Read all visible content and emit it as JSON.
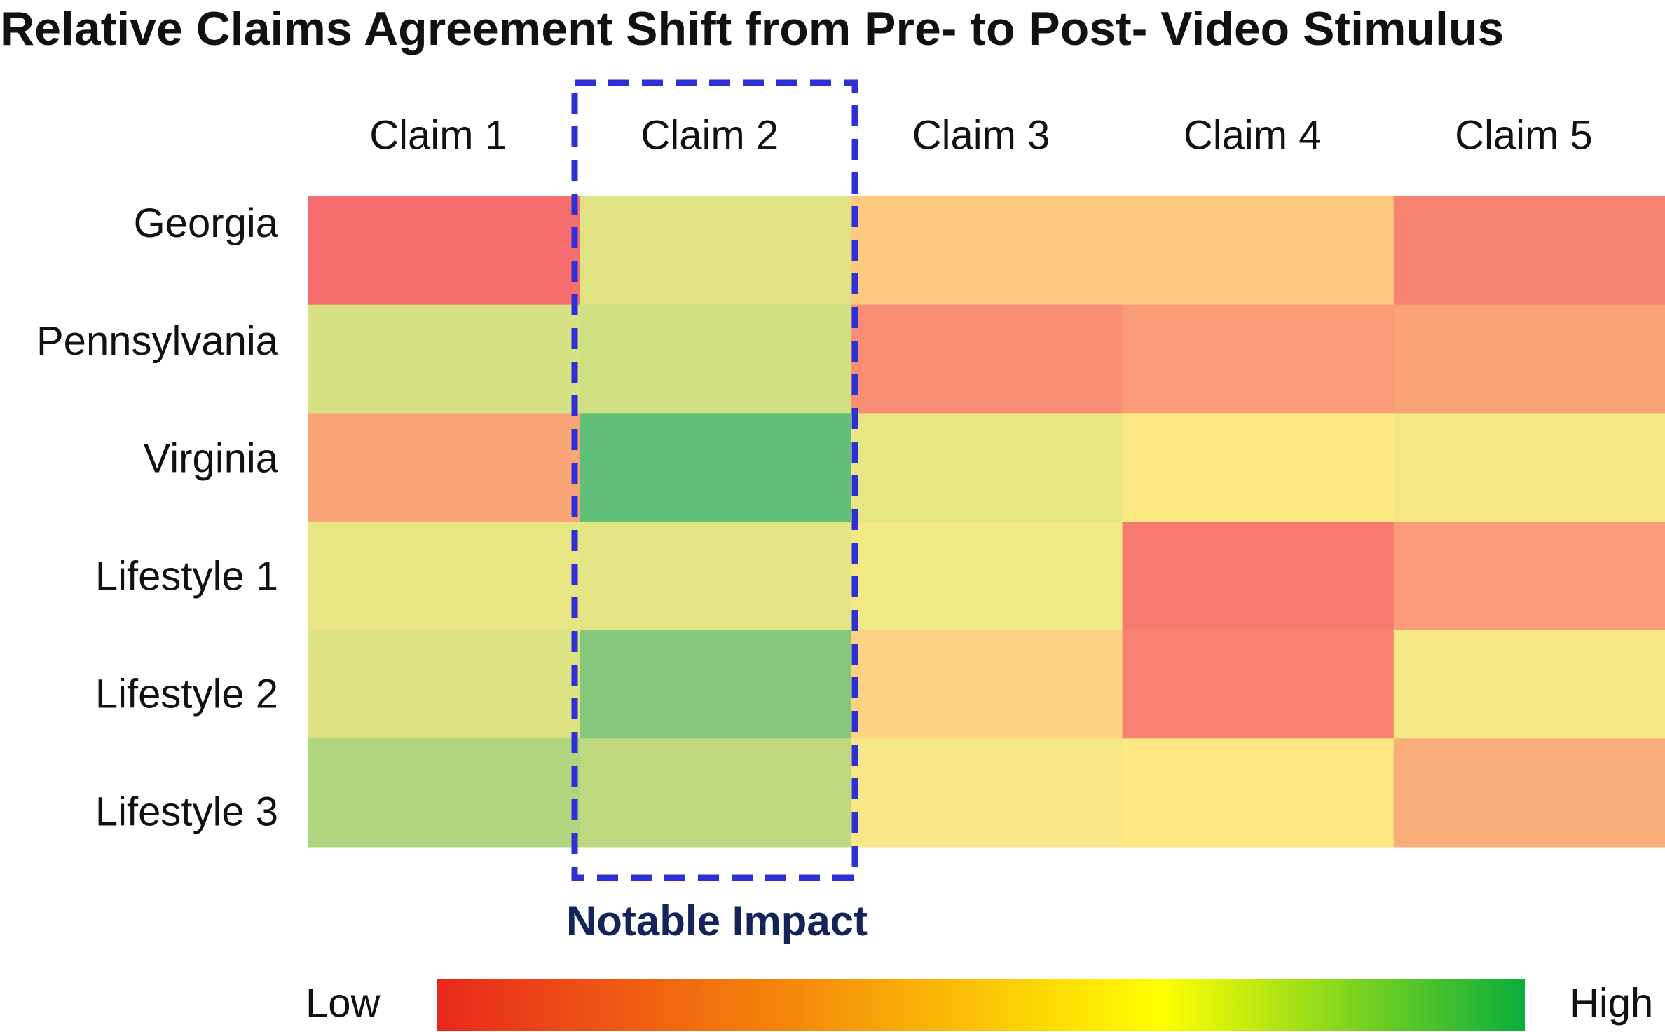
{
  "chart_data": {
    "type": "heatmap",
    "title": "Relative Claims Agreement Shift from Pre- to Post- Video Stimulus",
    "columns": [
      "Claim 1",
      "Claim 2",
      "Claim 3",
      "Claim 4",
      "Claim 5"
    ],
    "rows": [
      "Georgia",
      "Pennsylvania",
      "Virginia",
      "Lifestyle 1",
      "Lifestyle 2",
      "Lifestyle 3"
    ],
    "colors": [
      [
        "#f66d6d",
        "#e0e283",
        "#fec87e",
        "#fec87e",
        "#f88370"
      ],
      [
        "#d6e283",
        "#cfe083",
        "#f98e75",
        "#f99c77",
        "#f9a477"
      ],
      [
        "#f9a578",
        "#62bf78",
        "#e8e684",
        "#fde983",
        "#f3e884"
      ],
      [
        "#e7e584",
        "#e3e484",
        "#f2e885",
        "#f87b70",
        "#f99b77"
      ],
      [
        "#dde383",
        "#85c87b",
        "#fdd383",
        "#f88171",
        "#f4e885"
      ],
      [
        "#b0d57f",
        "#c0d980",
        "#f8e788",
        "#fde884",
        "#f9ad79"
      ]
    ],
    "annotation": "Notable Impact",
    "highlight_color": "#2f2fd6",
    "colorbar": {
      "low_label": "Low",
      "high_label": "High",
      "colors": [
        "#e8281c",
        "#f58a0a",
        "#ffff00",
        "#0aad3c"
      ]
    }
  }
}
